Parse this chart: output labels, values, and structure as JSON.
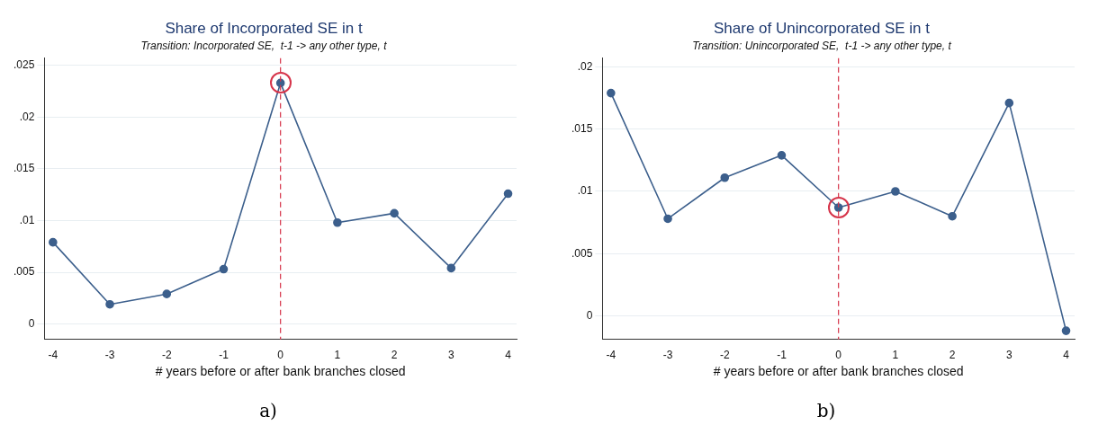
{
  "chart_data": [
    {
      "type": "line",
      "title": "Share of Incorporated SE in t",
      "subtitle": "Transition: Incorporated SE,  t-1 -> any other type, t",
      "xlabel": "# years before or after bank branches closed",
      "annotations": [
        "a)"
      ],
      "x": [
        -4,
        -3,
        -2,
        -1,
        0,
        1,
        2,
        3,
        4
      ],
      "series": [
        {
          "color": "#3c5f8c",
          "values": [
            0.0079,
            0.0019,
            0.0029,
            0.0053,
            0.0233,
            0.0098,
            0.0107,
            0.0054,
            0.0126
          ]
        }
      ],
      "xlim": [
        -4.15,
        4.15
      ],
      "xticks": [
        -4,
        -3,
        -2,
        -1,
        0,
        1,
        2,
        3,
        4
      ],
      "ylim": [
        -0.0015,
        0.0257
      ],
      "yticks": [
        {
          "value": 0,
          "label": "0"
        },
        {
          "value": 0.005,
          "label": ".005"
        },
        {
          "value": 0.01,
          "label": ".01"
        },
        {
          "value": 0.015,
          "label": ".015"
        },
        {
          "value": 0.02,
          "label": ".02"
        },
        {
          "value": 0.025,
          "label": ".025"
        }
      ],
      "ref_lines": [
        {
          "axis": "x",
          "value": 0,
          "color": "#d6344a",
          "line_style": "dashed"
        }
      ],
      "grid": "y",
      "marker": "circle",
      "line_style": "solid",
      "legend": false
    },
    {
      "type": "line",
      "title": "Share of Unincorporated SE in t",
      "subtitle": "Transition: Unincorporated SE,  t-1 -> any other type, t",
      "xlabel": "# years before or after bank branches closed",
      "annotations": [
        "b)"
      ],
      "x": [
        -4,
        -3,
        -2,
        -1,
        0,
        1,
        2,
        3,
        4
      ],
      "series": [
        {
          "color": "#3c5f8c",
          "values": [
            0.0179,
            0.0078,
            0.0111,
            0.0129,
            0.0087,
            0.01,
            0.008,
            0.0171,
            -0.0012
          ]
        }
      ],
      "xlim": [
        -4.15,
        4.15
      ],
      "xticks": [
        -4,
        -3,
        -2,
        -1,
        0,
        1,
        2,
        3,
        4
      ],
      "ylim": [
        -0.0019,
        0.0207
      ],
      "yticks": [
        {
          "value": 0,
          "label": "0"
        },
        {
          "value": 0.005,
          "label": ".005"
        },
        {
          "value": 0.01,
          "label": ".01"
        },
        {
          "value": 0.015,
          "label": ".015"
        },
        {
          "value": 0.02,
          "label": ".02"
        }
      ],
      "ref_lines": [
        {
          "axis": "x",
          "value": 0,
          "color": "#d6344a",
          "line_style": "dashed"
        }
      ],
      "grid": "y",
      "marker": "circle",
      "line_style": "solid",
      "legend": false
    }
  ]
}
